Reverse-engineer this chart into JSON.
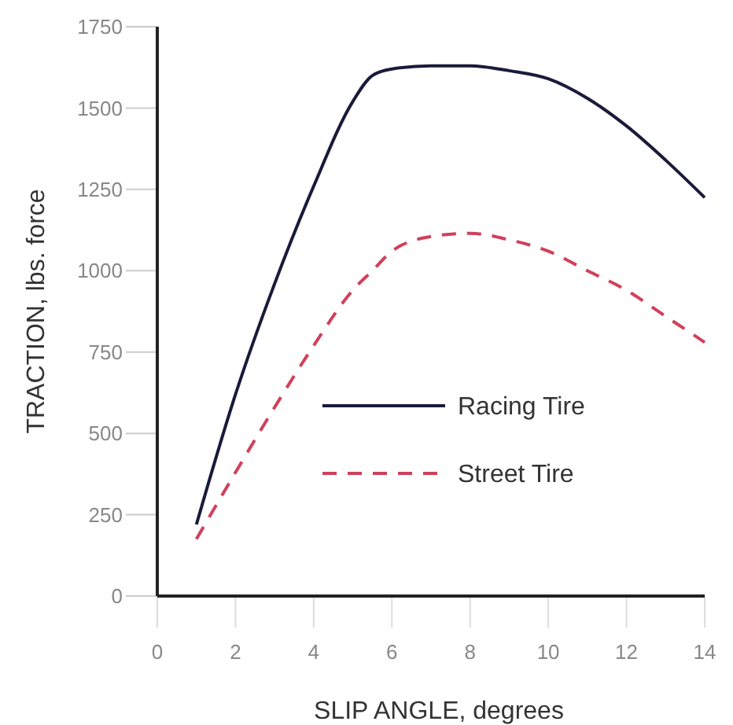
{
  "chart_data": {
    "type": "line",
    "xlabel": "SLIP ANGLE, degrees",
    "ylabel": "TRACTION, lbs. force",
    "x": [
      1,
      2,
      3,
      4,
      5,
      5.5,
      6,
      7,
      8,
      9,
      10,
      11,
      12,
      13,
      14
    ],
    "series": [
      {
        "name": "Racing Tire",
        "color": "#1a1a3a",
        "line_style": "solid",
        "values": [
          220,
          620,
          960,
          1260,
          1520,
          1600,
          1620,
          1630,
          1630,
          1615,
          1590,
          1530,
          1445,
          1340,
          1225
        ]
      },
      {
        "name": "Street Tire",
        "color": "#d0405a",
        "line_style": "dashed",
        "values": [
          175,
          380,
          580,
          770,
          940,
          1000,
          1060,
          1105,
          1115,
          1095,
          1060,
          1000,
          940,
          860,
          780
        ]
      }
    ],
    "xlim": [
      0,
      14
    ],
    "xticks": [
      0,
      2,
      4,
      6,
      8,
      10,
      12,
      14
    ],
    "ylim": [
      0,
      1750
    ],
    "yticks": [
      0,
      250,
      500,
      750,
      1000,
      1250,
      1500,
      1750
    ],
    "grid": false,
    "legend": "bottom"
  }
}
